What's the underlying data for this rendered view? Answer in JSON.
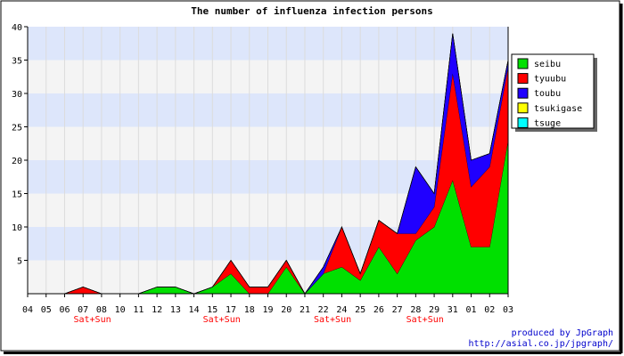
{
  "chart_data": {
    "type": "area",
    "stacked": true,
    "title": "The number of influenza infection persons",
    "xlabel": "",
    "ylabel": "",
    "ylim": [
      0,
      40
    ],
    "yticks": [
      5,
      10,
      15,
      20,
      25,
      30,
      35,
      40
    ],
    "categories": [
      "04",
      "05",
      "06",
      "07",
      "08",
      "10",
      "11",
      "12",
      "13",
      "14",
      "15",
      "17",
      "18",
      "19",
      "20",
      "21",
      "22",
      "24",
      "25",
      "26",
      "27",
      "28",
      "29",
      "31",
      "01",
      "02",
      "03"
    ],
    "annotations": [
      {
        "category": "07",
        "text": "Sat+Sun"
      },
      {
        "category": "15",
        "text": "Sat+Sun"
      },
      {
        "category": "22",
        "text": "Sat+Sun"
      },
      {
        "category": "28",
        "text": "Sat+Sun"
      }
    ],
    "legend_position": "right",
    "grid": true,
    "series": [
      {
        "name": "seibu",
        "color": "#00e000",
        "values": [
          0,
          0,
          0,
          0,
          0,
          0,
          0,
          1,
          1,
          0,
          1,
          3,
          0,
          0,
          4,
          0,
          3,
          4,
          2,
          7,
          3,
          8,
          10,
          17,
          7,
          7,
          23
        ]
      },
      {
        "name": "tyuubu",
        "color": "#ff0000",
        "values": [
          0,
          0,
          0,
          1,
          0,
          0,
          0,
          0,
          0,
          0,
          0,
          2,
          1,
          1,
          1,
          0,
          0,
          6,
          1,
          4,
          6,
          1,
          3,
          16,
          9,
          12,
          11
        ]
      },
      {
        "name": "toubu",
        "color": "#2000ff",
        "values": [
          0,
          0,
          0,
          0,
          0,
          0,
          0,
          0,
          0,
          0,
          0,
          0,
          0,
          0,
          0,
          0,
          1,
          0,
          0,
          0,
          0,
          10,
          2,
          6,
          4,
          2,
          1
        ]
      },
      {
        "name": "tsukigase",
        "color": "#ffff00",
        "values": [
          0,
          0,
          0,
          0,
          0,
          0,
          0,
          0,
          0,
          0,
          0,
          0,
          0,
          0,
          0,
          0,
          0,
          0,
          0,
          0,
          0,
          0,
          0,
          0,
          0,
          0,
          0
        ]
      },
      {
        "name": "tsuge",
        "color": "#00ffff",
        "values": [
          0,
          0,
          0,
          0,
          0,
          0,
          0,
          0,
          0,
          0,
          0,
          0,
          0,
          0,
          0,
          0,
          0,
          0,
          0,
          0,
          0,
          0,
          0,
          0,
          0,
          0,
          0
        ]
      }
    ]
  },
  "credits": {
    "line1": "produced by JpGraph",
    "line2": "http://asial.co.jp/jpgraph/"
  }
}
